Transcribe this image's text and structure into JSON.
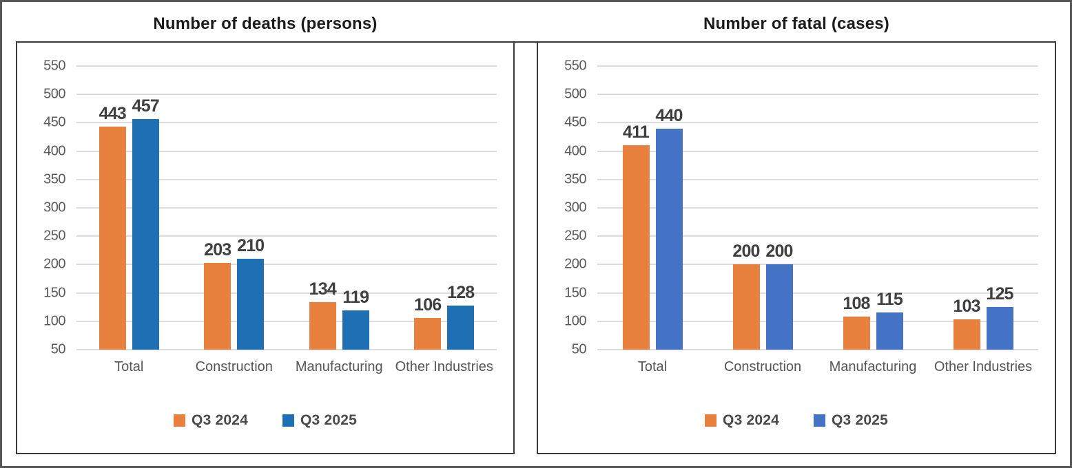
{
  "page": {
    "background": "#ffffff",
    "outer_border_color": "#575757",
    "panel_border_color": "#3a3a3a",
    "gridline_color": "#dbdbdb",
    "tick_text_color": "#5a5a5a",
    "value_label_color": "#3f3f3f",
    "title_text_color": "#1b1b1b",
    "legend_text_color": "#4a4a4a"
  },
  "chart_data": [
    {
      "type": "bar",
      "title": "Number of deaths (persons)",
      "categories": [
        "Total",
        "Construction",
        "Manufacturing",
        "Other Industries"
      ],
      "series": [
        {
          "name": "Q3 2024",
          "color": "#E8813D",
          "values": [
            443,
            203,
            134,
            106
          ]
        },
        {
          "name": "Q3 2025",
          "color": "#1F6FB5",
          "values": [
            457,
            210,
            119,
            128
          ]
        }
      ],
      "y_axis": {
        "min": 50,
        "max": 550,
        "step": 50,
        "ticks": [
          550,
          500,
          450,
          400,
          350,
          300,
          250,
          200,
          150,
          100,
          50
        ]
      },
      "grid": true,
      "legend_position": "bottom"
    },
    {
      "type": "bar",
      "title": "Number of fatal (cases)",
      "categories": [
        "Total",
        "Construction",
        "Manufacturing",
        "Other Industries"
      ],
      "series": [
        {
          "name": "Q3 2024",
          "color": "#E8813D",
          "values": [
            411,
            200,
            108,
            103
          ]
        },
        {
          "name": "Q3 2025",
          "color": "#4472C4",
          "values": [
            440,
            200,
            115,
            125
          ]
        }
      ],
      "y_axis": {
        "min": 50,
        "max": 550,
        "step": 50,
        "ticks": [
          550,
          500,
          450,
          400,
          350,
          300,
          250,
          200,
          150,
          100,
          50
        ]
      },
      "grid": true,
      "legend_position": "bottom"
    }
  ]
}
